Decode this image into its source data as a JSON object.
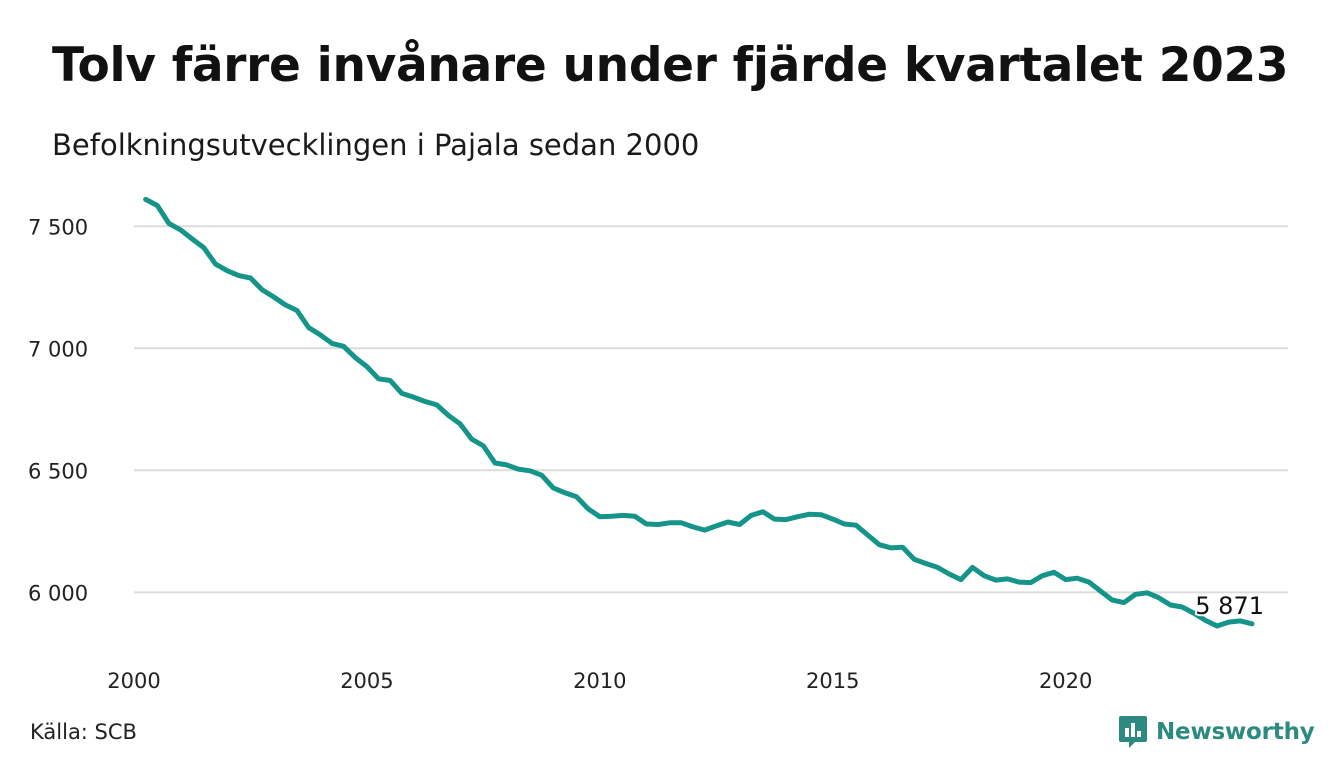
{
  "colors": {
    "line": "#15948a",
    "grid": "#dcdcdc",
    "text": "#111111",
    "brand": "#2d8a80"
  },
  "source_text": "Källa: SCB",
  "logo": {
    "name": "Newsworthy",
    "icon": "newsworthy-chart-bubble-icon"
  },
  "chart_data": {
    "type": "line",
    "title": "Tolv färre invånare under fjärde kvartalet 2023",
    "subtitle": "Befolkningsutvecklingen i Pajala sedan 2000",
    "xlabel": "",
    "ylabel": "",
    "xlim": [
      2000,
      2024
    ],
    "ylim": [
      5780,
      7620
    ],
    "x_ticks": [
      2000,
      2005,
      2010,
      2015,
      2020
    ],
    "x_tick_labels": [
      "2000",
      "2005",
      "2010",
      "2015",
      "2020"
    ],
    "y_ticks": [
      6000,
      6500,
      7000,
      7500
    ],
    "y_tick_labels": [
      "6 000",
      "6 500",
      "7 000",
      "7 500"
    ],
    "grid": "horizontal",
    "legend": "none",
    "x": [
      2000.25,
      2000.5,
      2000.75,
      2001.0,
      2001.25,
      2001.5,
      2001.75,
      2002.0,
      2002.25,
      2002.5,
      2002.75,
      2003.0,
      2003.25,
      2003.5,
      2003.75,
      2004.0,
      2004.25,
      2004.5,
      2004.75,
      2005.0,
      2005.25,
      2005.5,
      2005.75,
      2006.0,
      2006.25,
      2006.5,
      2006.75,
      2007.0,
      2007.25,
      2007.5,
      2007.75,
      2008.0,
      2008.25,
      2008.5,
      2008.75,
      2009.0,
      2009.25,
      2009.5,
      2009.75,
      2010.0,
      2010.25,
      2010.5,
      2010.75,
      2011.0,
      2011.25,
      2011.5,
      2011.75,
      2012.0,
      2012.25,
      2012.5,
      2012.75,
      2013.0,
      2013.25,
      2013.5,
      2013.75,
      2014.0,
      2014.25,
      2014.5,
      2014.75,
      2015.0,
      2015.25,
      2015.5,
      2015.75,
      2016.0,
      2016.25,
      2016.5,
      2016.75,
      2017.0,
      2017.25,
      2017.5,
      2017.75,
      2018.0,
      2018.25,
      2018.5,
      2018.75,
      2019.0,
      2019.25,
      2019.5,
      2019.75,
      2020.0,
      2020.25,
      2020.5,
      2020.75,
      2021.0,
      2021.25,
      2021.5,
      2021.75,
      2022.0,
      2022.25,
      2022.5,
      2022.75,
      2023.0,
      2023.25,
      2023.5,
      2023.75,
      2024.0
    ],
    "series": [
      {
        "values": [
          7610,
          7585,
          7512,
          7485,
          7448,
          7412,
          7345,
          7318,
          7298,
          7288,
          7240,
          7210,
          7178,
          7155,
          7085,
          7055,
          7020,
          7008,
          6962,
          6925,
          6875,
          6868,
          6815,
          6800,
          6782,
          6768,
          6725,
          6690,
          6628,
          6600,
          6530,
          6522,
          6505,
          6498,
          6480,
          6428,
          6408,
          6392,
          6342,
          6310,
          6312,
          6315,
          6312,
          6280,
          6278,
          6285,
          6285,
          6268,
          6255,
          6272,
          6288,
          6278,
          6315,
          6330,
          6300,
          6298,
          6310,
          6320,
          6318,
          6300,
          6280,
          6275,
          6235,
          6195,
          6182,
          6185,
          6135,
          6118,
          6102,
          6075,
          6052,
          6102,
          6068,
          6050,
          6055,
          6042,
          6040,
          6068,
          6082,
          6052,
          6058,
          6042,
          6005,
          5968,
          5958,
          5992,
          5998,
          5978,
          5948,
          5940,
          5915,
          5885,
          5862,
          5878,
          5883,
          5871
        ]
      }
    ],
    "end_label": "5 871"
  }
}
